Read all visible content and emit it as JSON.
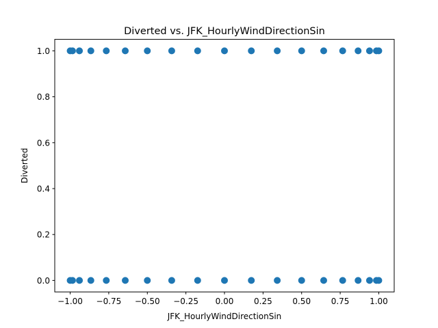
{
  "chart_data": {
    "type": "scatter",
    "title": "Diverted vs. JFK_HourlyWindDirectionSin",
    "xlabel": "JFK_HourlyWindDirectionSin",
    "ylabel": "Diverted",
    "xlim": [
      -1.1,
      1.1
    ],
    "ylim": [
      -0.05,
      1.05
    ],
    "xticks": [
      -1.0,
      -0.75,
      -0.5,
      -0.25,
      0.0,
      0.25,
      0.5,
      0.75,
      1.0
    ],
    "xtick_labels": [
      "−1.00",
      "−0.75",
      "−0.50",
      "−0.25",
      "0.00",
      "0.25",
      "0.50",
      "0.75",
      "1.00"
    ],
    "yticks": [
      0.0,
      0.2,
      0.4,
      0.6,
      0.8,
      1.0
    ],
    "ytick_labels": [
      "0.0",
      "0.2",
      "0.4",
      "0.6",
      "0.8",
      "1.0"
    ],
    "grid": false,
    "marker_color": "#1f77b4",
    "series": [
      {
        "x": [
          -1.0,
          -0.985,
          -0.94,
          -0.866,
          -0.766,
          -0.643,
          -0.5,
          -0.342,
          -0.174,
          0.0,
          0.174,
          0.342,
          0.5,
          0.643,
          0.766,
          0.866,
          0.94,
          0.985,
          1.0,
          -1.0,
          -0.985,
          -0.94,
          -0.866,
          -0.766,
          -0.643,
          -0.5,
          -0.342,
          -0.174,
          0.0,
          0.174,
          0.342,
          0.5,
          0.643,
          0.766,
          0.866,
          0.94,
          0.985,
          1.0
        ],
        "y": [
          1,
          1,
          1,
          1,
          1,
          1,
          1,
          1,
          1,
          1,
          1,
          1,
          1,
          1,
          1,
          1,
          1,
          1,
          1,
          0,
          0,
          0,
          0,
          0,
          0,
          0,
          0,
          0,
          0,
          0,
          0,
          0,
          0,
          0,
          0,
          0,
          0,
          0
        ]
      }
    ]
  }
}
